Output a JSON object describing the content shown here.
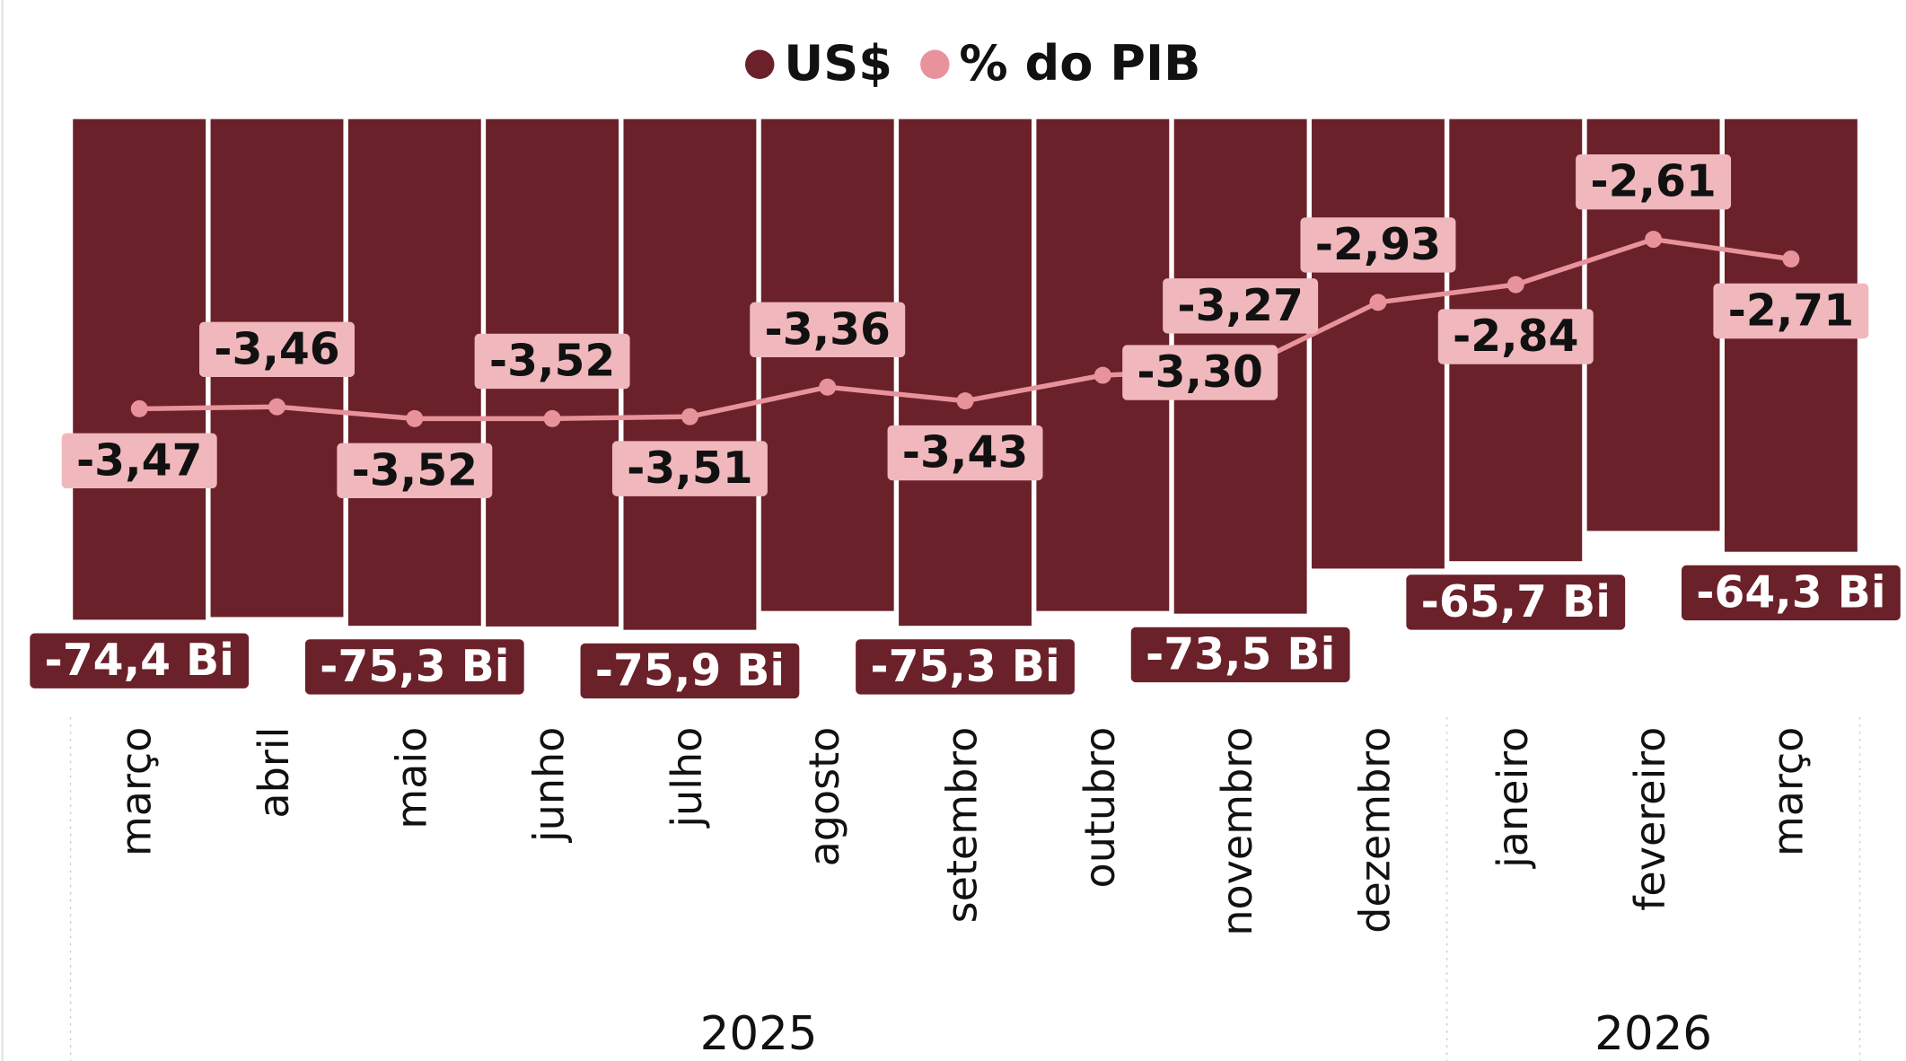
{
  "chart_data": {
    "type": "bar_line",
    "categories": [
      "março",
      "abril",
      "maio",
      "junho",
      "julho",
      "agosto",
      "setembro",
      "outubro",
      "novembro",
      "dezembro",
      "janeiro",
      "fevereiro",
      "março"
    ],
    "groups": [
      {
        "label": "2025",
        "count": 10
      },
      {
        "label": "2026",
        "count": 3
      }
    ],
    "series": [
      {
        "name": "US$",
        "color": "#6b2129",
        "values": [
          -74.4,
          -74.0,
          -75.3,
          -75.4,
          -75.9,
          -73.1,
          -75.3,
          -73.1,
          -73.5,
          -66.8,
          -65.7,
          -61.2,
          -64.3
        ],
        "value_labels": [
          "-74,4 Bi",
          null,
          "-75,3 Bi",
          null,
          "-75,9 Bi",
          null,
          "-75,3 Bi",
          null,
          "-73,5 Bi",
          null,
          "-65,7 Bi",
          null,
          "-64,3 Bi"
        ]
      },
      {
        "name": "% do PIB",
        "color": "#e8939b",
        "axis": "y2",
        "values": [
          -3.47,
          -3.46,
          -3.52,
          -3.52,
          -3.51,
          -3.36,
          -3.43,
          -3.3,
          -3.27,
          -2.93,
          -2.84,
          -2.61,
          -2.71
        ],
        "value_labels": [
          "-3,47",
          "-3,46",
          "-3,52",
          "-3,52",
          "-3,51",
          "-3,36",
          "-3,43",
          "-3,30",
          "-3,27",
          "-2,93",
          "-2,84",
          "-2,61",
          "-2,71"
        ]
      }
    ],
    "ylim": [
      -82,
      0
    ],
    "y2lim": [
      -4.8,
      -2.0
    ]
  }
}
